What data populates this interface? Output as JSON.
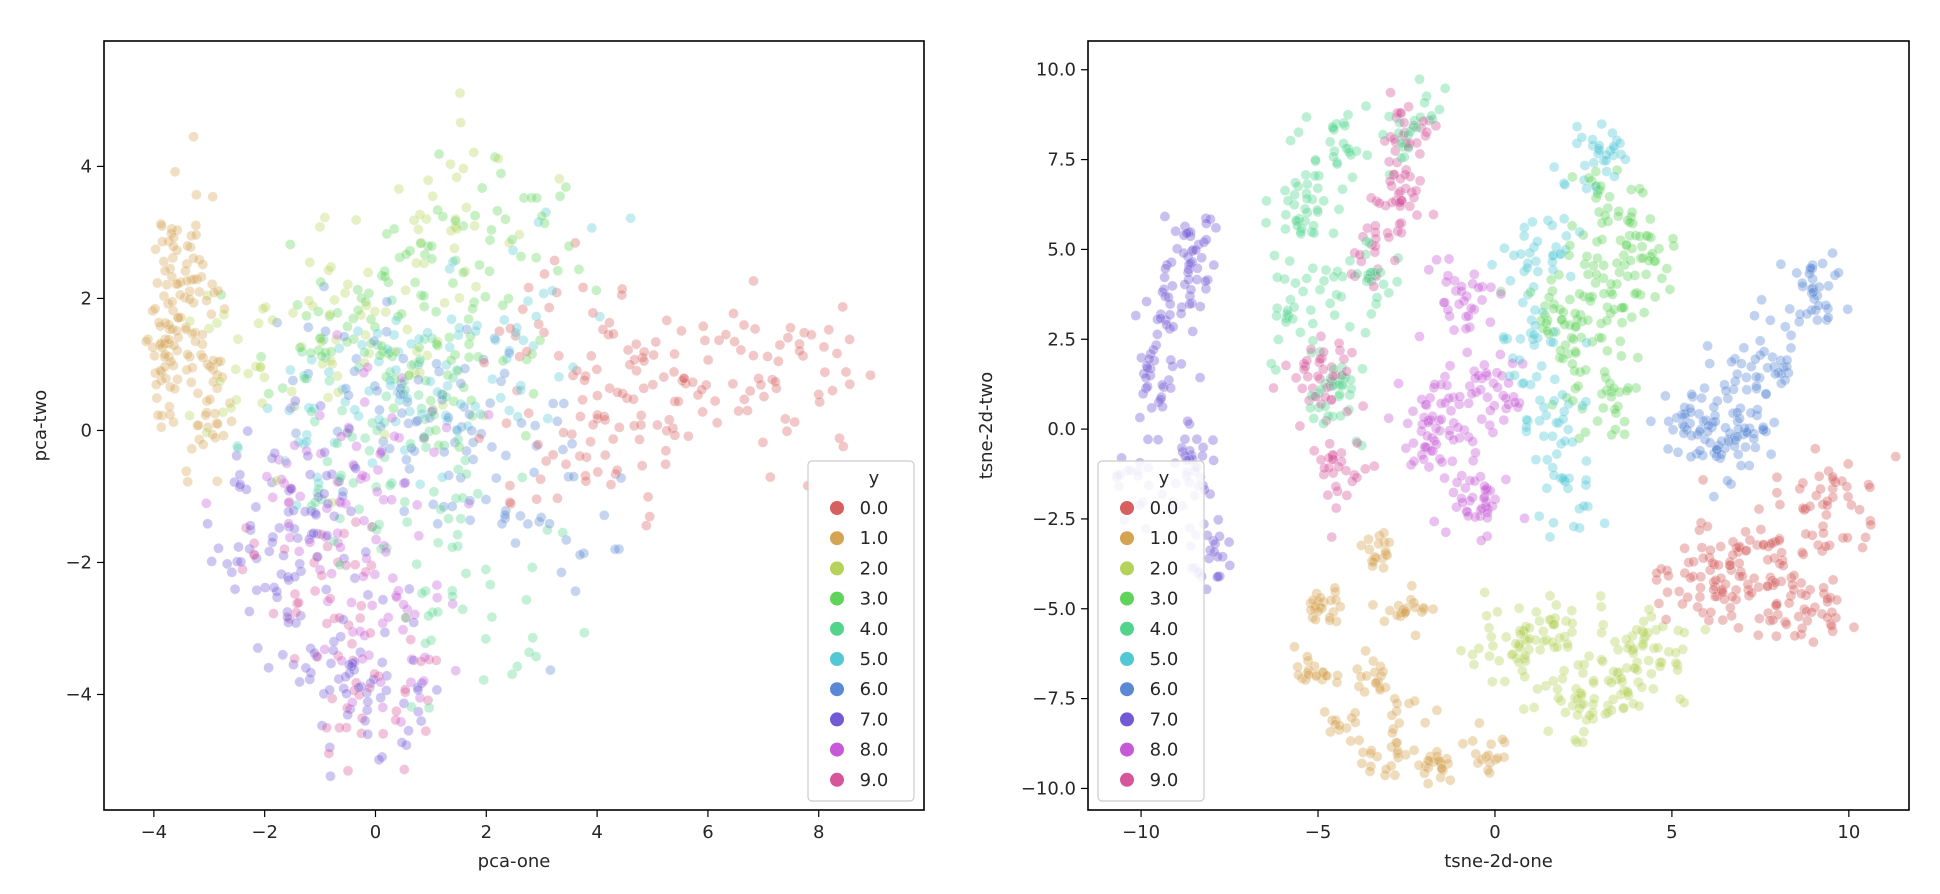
{
  "chart_data": [
    {
      "type": "scatter",
      "xlabel": "pca-one",
      "ylabel": "pca-two",
      "xlim": [
        -4.9,
        9.9
      ],
      "ylim": [
        -5.75,
        5.9
      ],
      "xticks": [
        {
          "v": -4,
          "label": "−4"
        },
        {
          "v": -2,
          "label": "−2"
        },
        {
          "v": 0,
          "label": "0"
        },
        {
          "v": 2,
          "label": "2"
        },
        {
          "v": 4,
          "label": "4"
        },
        {
          "v": 6,
          "label": "6"
        },
        {
          "v": 8,
          "label": "8"
        }
      ],
      "yticks": [
        {
          "v": -4,
          "label": "−4"
        },
        {
          "v": -2,
          "label": "−2"
        },
        {
          "v": 0,
          "label": "0"
        },
        {
          "v": 2,
          "label": "2"
        },
        {
          "v": 4,
          "label": "4"
        }
      ],
      "grid": false,
      "legend_title": "y",
      "legend_position": "lower-right",
      "point_alpha": 0.35,
      "series": [
        {
          "name": "0.0",
          "color": "#d65f5f",
          "n": 170,
          "spread_x": 1.4,
          "spread_y": 1.0,
          "tilt": 0.2,
          "centers": [
            [
              5.0,
              0.5
            ],
            [
              6.8,
              0.7
            ],
            [
              4.0,
              -0.2
            ],
            [
              7.6,
              0.9
            ],
            [
              3.5,
              1.5
            ]
          ]
        },
        {
          "name": "1.0",
          "color": "#d5a452",
          "n": 150,
          "spread_x": 0.35,
          "spread_y": 1.15,
          "tilt": 0,
          "centers": [
            [
              -3.6,
              1.9
            ],
            [
              -3.3,
              2.6
            ],
            [
              -3.8,
              1.2
            ],
            [
              -3.0,
              0.8
            ]
          ]
        },
        {
          "name": "2.0",
          "color": "#b5d35a",
          "n": 100,
          "spread_x": 1.3,
          "spread_y": 1.2,
          "tilt": 0,
          "centers": [
            [
              -1.0,
              2.2
            ],
            [
              0.5,
              1.5
            ],
            [
              -2.0,
              0.5
            ],
            [
              1.5,
              3.5
            ]
          ]
        },
        {
          "name": "3.0",
          "color": "#5fd35a",
          "n": 130,
          "spread_x": 1.3,
          "spread_y": 1.0,
          "tilt": 0,
          "centers": [
            [
              0.8,
              2.6
            ],
            [
              2.0,
              3.0
            ],
            [
              -0.5,
              1.5
            ],
            [
              1.5,
              1.0
            ]
          ]
        },
        {
          "name": "4.0",
          "color": "#52d48d",
          "n": 110,
          "spread_x": 1.4,
          "spread_y": 1.5,
          "tilt": 0,
          "centers": [
            [
              0.5,
              0.5
            ],
            [
              1.5,
              -1.5
            ],
            [
              -0.5,
              -0.5
            ],
            [
              2.0,
              -3.0
            ]
          ]
        },
        {
          "name": "5.0",
          "color": "#52c8d4",
          "n": 100,
          "spread_x": 1.4,
          "spread_y": 1.2,
          "tilt": 0,
          "centers": [
            [
              0.5,
              0.8
            ],
            [
              2.0,
              1.0
            ],
            [
              -1.0,
              0.2
            ],
            [
              3.0,
              2.5
            ]
          ]
        },
        {
          "name": "6.0",
          "color": "#5a88d4",
          "n": 110,
          "spread_x": 1.3,
          "spread_y": 1.2,
          "tilt": 0,
          "centers": [
            [
              1.0,
              0.0
            ],
            [
              3.0,
              -1.2
            ],
            [
              -0.5,
              0.8
            ],
            [
              2.0,
              0.0
            ]
          ]
        },
        {
          "name": "7.0",
          "color": "#7359d6",
          "n": 150,
          "spread_x": 1.0,
          "spread_y": 1.0,
          "tilt": 0,
          "centers": [
            [
              -1.5,
              -2.5
            ],
            [
              -0.8,
              -3.5
            ],
            [
              -2.2,
              -1.5
            ],
            [
              0.0,
              -4.0
            ],
            [
              -1.0,
              -1.0
            ]
          ]
        },
        {
          "name": "8.0",
          "color": "#c659d6",
          "n": 100,
          "spread_x": 1.3,
          "spread_y": 1.3,
          "tilt": 0,
          "centers": [
            [
              -0.2,
              -1.5
            ],
            [
              0.5,
              -3.0
            ],
            [
              -1.0,
              -0.5
            ],
            [
              0.5,
              0.0
            ]
          ]
        },
        {
          "name": "9.0",
          "color": "#d6559b",
          "n": 70,
          "spread_x": 1.2,
          "spread_y": 1.0,
          "tilt": 0,
          "centers": [
            [
              -0.5,
              -3.2
            ],
            [
              0.2,
              -4.0
            ],
            [
              -1.2,
              -2.0
            ]
          ]
        }
      ]
    },
    {
      "type": "scatter",
      "xlabel": "tsne-2d-one",
      "ylabel": "tsne-2d-two",
      "xlim": [
        -11.5,
        11.7
      ],
      "ylim": [
        -10.6,
        10.8
      ],
      "xticks": [
        {
          "v": -10,
          "label": "−10"
        },
        {
          "v": -5,
          "label": "−5"
        },
        {
          "v": 0,
          "label": "0"
        },
        {
          "v": 5,
          "label": "5"
        },
        {
          "v": 10,
          "label": "10"
        }
      ],
      "yticks": [
        {
          "v": -10,
          "label": "−10.0"
        },
        {
          "v": -7.5,
          "label": "−7.5"
        },
        {
          "v": -5,
          "label": "−5.0"
        },
        {
          "v": -2.5,
          "label": "−2.5"
        },
        {
          "v": 0,
          "label": "0.0"
        },
        {
          "v": 2.5,
          "label": "2.5"
        },
        {
          "v": 5,
          "label": "5.0"
        },
        {
          "v": 7.5,
          "label": "7.5"
        },
        {
          "v": 10,
          "label": "10.0"
        }
      ],
      "grid": false,
      "legend_title": "y",
      "legend_position": "lower-left",
      "point_alpha": 0.38,
      "series": [
        {
          "name": "0.0",
          "color": "#d65f5f",
          "n": 200,
          "spread_x": 1.4,
          "spread_y": 1.2,
          "tilt": 0.25,
          "centers": [
            [
              7.5,
              -3.5
            ],
            [
              9.5,
              -2.0
            ],
            [
              6.0,
              -4.2
            ],
            [
              8.5,
              -5.0
            ]
          ]
        },
        {
          "name": "1.0",
          "color": "#d5a452",
          "n": 180,
          "spread_x": 0.55,
          "spread_y": 0.5,
          "tilt": 0,
          "centers": [
            [
              -3.5,
              -3.5
            ],
            [
              -4.8,
              -5.0
            ],
            [
              -5.0,
              -6.8
            ],
            [
              -4.5,
              -8.2
            ],
            [
              -3.2,
              -9.0
            ],
            [
              -1.5,
              -9.4
            ],
            [
              -0.3,
              -9.0
            ],
            [
              -2.5,
              -5.0
            ],
            [
              -3.5,
              -7.0
            ],
            [
              -2.5,
              -8.0
            ]
          ]
        },
        {
          "name": "2.0",
          "color": "#b5d35a",
          "n": 180,
          "spread_x": 1.2,
          "spread_y": 0.9,
          "tilt": 0,
          "centers": [
            [
              1.5,
              -5.5
            ],
            [
              3.5,
              -6.8
            ],
            [
              0.5,
              -6.0
            ],
            [
              2.5,
              -7.5
            ],
            [
              4.5,
              -6.0
            ]
          ]
        },
        {
          "name": "3.0",
          "color": "#5fd35a",
          "n": 180,
          "spread_x": 1.0,
          "spread_y": 1.1,
          "tilt": 0,
          "centers": [
            [
              3.0,
              6.0
            ],
            [
              3.5,
              3.5
            ],
            [
              3.0,
              1.0
            ],
            [
              4.3,
              5.0
            ],
            [
              2.0,
              3.0
            ]
          ]
        },
        {
          "name": "4.0",
          "color": "#52d48d",
          "n": 180,
          "spread_x": 0.8,
          "spread_y": 1.0,
          "tilt": 0,
          "centers": [
            [
              -4.5,
              7.5
            ],
            [
              -5.8,
              3.5
            ],
            [
              -3.5,
              4.0
            ],
            [
              -4.5,
              1.0
            ],
            [
              -2.5,
              8.5
            ],
            [
              -5.5,
              6.0
            ]
          ]
        },
        {
          "name": "5.0",
          "color": "#52c8d4",
          "n": 140,
          "spread_x": 0.9,
          "spread_y": 1.0,
          "tilt": 0,
          "centers": [
            [
              1.2,
              5.0
            ],
            [
              2.0,
              -1.8
            ],
            [
              0.8,
              2.5
            ],
            [
              3.0,
              7.5
            ],
            [
              1.5,
              0.5
            ]
          ]
        },
        {
          "name": "6.0",
          "color": "#5a88d4",
          "n": 170,
          "spread_x": 1.1,
          "spread_y": 0.8,
          "tilt": 0.9,
          "centers": [
            [
              7.5,
              1.8
            ],
            [
              5.5,
              0.2
            ],
            [
              9.0,
              3.8
            ],
            [
              6.8,
              -0.3
            ]
          ]
        },
        {
          "name": "7.0",
          "color": "#7359d6",
          "n": 170,
          "spread_x": 0.6,
          "spread_y": 1.0,
          "tilt": 0,
          "centers": [
            [
              -9.5,
              1.5
            ],
            [
              -8.5,
              5.0
            ],
            [
              -8.5,
              -1.0
            ],
            [
              -8.0,
              -3.5
            ],
            [
              -10.0,
              -1.5
            ],
            [
              -9.0,
              3.5
            ]
          ]
        },
        {
          "name": "8.0",
          "color": "#c659d6",
          "n": 170,
          "spread_x": 0.9,
          "spread_y": 0.9,
          "tilt": 0,
          "centers": [
            [
              -1.0,
              3.5
            ],
            [
              -1.5,
              0.5
            ],
            [
              -0.5,
              -2.0
            ],
            [
              0.0,
              1.0
            ],
            [
              -2.0,
              -0.5
            ]
          ]
        },
        {
          "name": "9.0",
          "color": "#d6559b",
          "n": 150,
          "spread_x": 0.7,
          "spread_y": 0.9,
          "tilt": 0,
          "centers": [
            [
              -2.8,
              6.5
            ],
            [
              -5.0,
              1.5
            ],
            [
              -2.5,
              8.5
            ],
            [
              -4.5,
              -1.0
            ],
            [
              -3.5,
              5.0
            ]
          ]
        }
      ]
    }
  ]
}
